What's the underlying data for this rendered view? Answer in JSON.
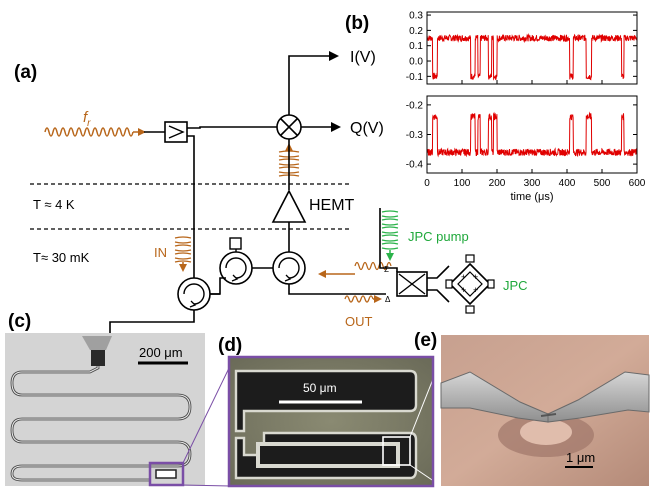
{
  "labels": {
    "panel_a": "(a)",
    "panel_b": "(b)",
    "panel_c": "(c)",
    "panel_d": "(d)",
    "panel_e": "(e)",
    "fr": "f",
    "fr_sub": "r",
    "I": "I(V)",
    "Q": "Q(V)",
    "T4K": "T ≈ 4 K",
    "T30mK": "T≈ 30 mK",
    "HEMT": "HEMT",
    "JPC_pump": "JPC pump",
    "JPC": "JPC",
    "IN": "IN",
    "OUT": "OUT",
    "sigma": "Σ",
    "delta": "Δ",
    "scale_c": "200 μm",
    "scale_d": "50 μm",
    "scale_e": "1 μm"
  },
  "colors": {
    "signal": "#b8661a",
    "pump": "#2bb34a",
    "trace": "#e00000",
    "frame_purple": "#7a4ea6",
    "frame_white": "#ffffff"
  },
  "chart_data": [
    {
      "type": "line",
      "title": "",
      "xlabel": "",
      "ylabel": "",
      "xlim": [
        0,
        600
      ],
      "ylim": [
        -0.15,
        0.32
      ],
      "yticks": [
        0.3,
        0.2,
        0.1,
        0.0,
        -0.1
      ],
      "ytick_labels": [
        "0.3",
        "0.2",
        "0.1",
        "0.0",
        "-0.1"
      ],
      "series": [
        {
          "levels": [
            0.15,
            -0.1
          ],
          "segments": [
            [
              0,
              16,
              0.15
            ],
            [
              16,
              30,
              -0.1
            ],
            [
              30,
              125,
              0.15
            ],
            [
              125,
              138,
              -0.1
            ],
            [
              138,
              145,
              0.15
            ],
            [
              145,
              152,
              -0.1
            ],
            [
              152,
              175,
              0.15
            ],
            [
              175,
              185,
              -0.1
            ],
            [
              185,
              190,
              0.15
            ],
            [
              190,
              200,
              -0.1
            ],
            [
              200,
              408,
              0.15
            ],
            [
              408,
              418,
              -0.1
            ],
            [
              418,
              455,
              0.15
            ],
            [
              455,
              470,
              -0.1
            ],
            [
              470,
              556,
              0.15
            ],
            [
              556,
              563,
              -0.1
            ],
            [
              563,
              600,
              0.15
            ]
          ]
        }
      ]
    },
    {
      "type": "line",
      "title": "",
      "xlabel": "time (μs)",
      "ylabel": "",
      "xlim": [
        0,
        600
      ],
      "ylim": [
        -0.43,
        -0.17
      ],
      "xticks": [
        0,
        100,
        200,
        300,
        400,
        500,
        600
      ],
      "xtick_labels": [
        "0",
        "100",
        "200",
        "300",
        "400",
        "500",
        "600"
      ],
      "yticks": [
        -0.2,
        -0.3,
        -0.4
      ],
      "ytick_labels": [
        "-0.2",
        "-0.3",
        "-0.4"
      ],
      "series": [
        {
          "levels": [
            -0.36,
            -0.24
          ],
          "segments": [
            [
              0,
              16,
              -0.36
            ],
            [
              16,
              30,
              -0.24
            ],
            [
              30,
              125,
              -0.36
            ],
            [
              125,
              138,
              -0.24
            ],
            [
              138,
              145,
              -0.36
            ],
            [
              145,
              152,
              -0.24
            ],
            [
              152,
              175,
              -0.36
            ],
            [
              175,
              185,
              -0.24
            ],
            [
              185,
              190,
              -0.36
            ],
            [
              190,
              200,
              -0.24
            ],
            [
              200,
              408,
              -0.36
            ],
            [
              408,
              418,
              -0.24
            ],
            [
              418,
              455,
              -0.36
            ],
            [
              455,
              470,
              -0.24
            ],
            [
              470,
              556,
              -0.36
            ],
            [
              556,
              563,
              -0.24
            ],
            [
              563,
              600,
              -0.36
            ]
          ]
        }
      ]
    }
  ]
}
